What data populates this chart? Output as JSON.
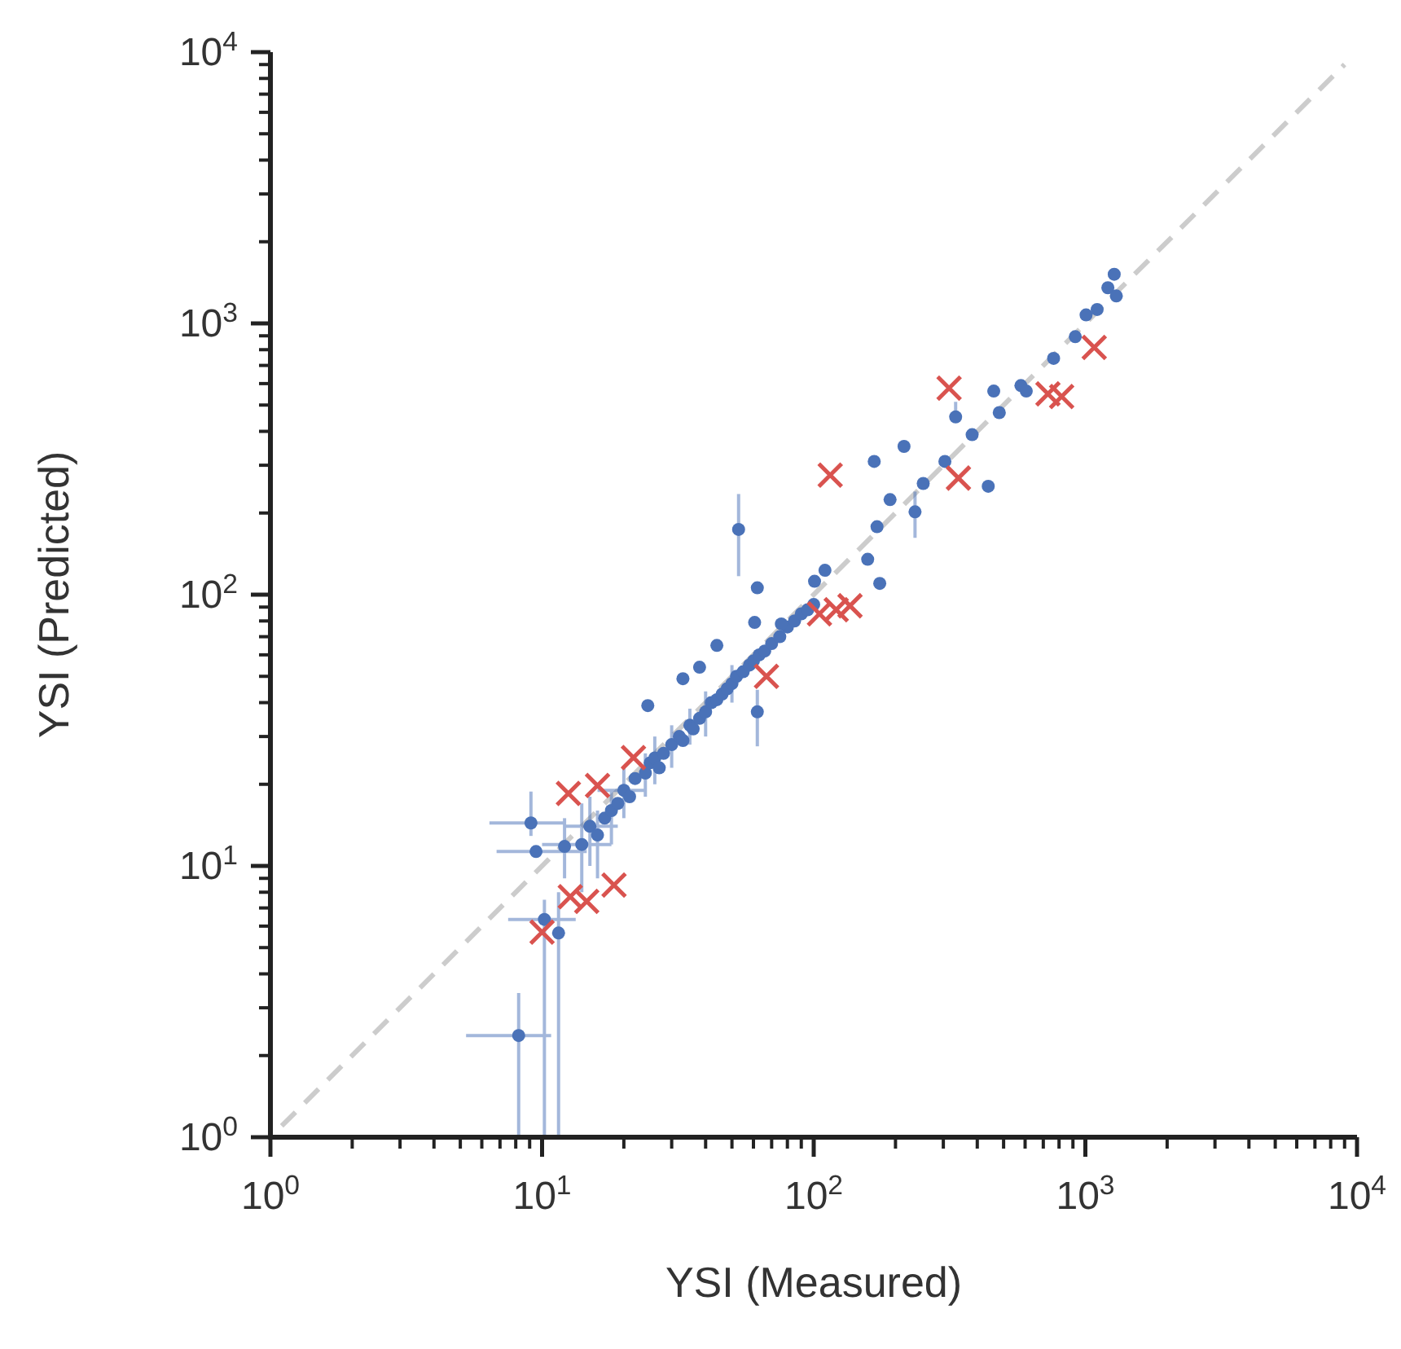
{
  "chart_data": {
    "type": "scatter",
    "xlabel": "YSI (Measured)",
    "ylabel": "YSI (Predicted)",
    "log": "xy",
    "grid": false,
    "xlim": [
      1,
      10000
    ],
    "ylim": [
      1,
      10000
    ],
    "xticks": [
      {
        "value": 1,
        "label": "10$^{0}$"
      },
      {
        "value": 2,
        "label": null
      },
      {
        "value": 3,
        "label": null
      },
      {
        "value": 4,
        "label": null
      },
      {
        "value": 5,
        "label": null
      },
      {
        "value": 6,
        "label": null
      },
      {
        "value": 7,
        "label": null
      },
      {
        "value": 8,
        "label": null
      },
      {
        "value": 9,
        "label": null
      },
      {
        "value": 10,
        "label": "10$^{1}$"
      },
      {
        "value": 20,
        "label": null
      },
      {
        "value": 30,
        "label": null
      },
      {
        "value": 40,
        "label": null
      },
      {
        "value": 50,
        "label": null
      },
      {
        "value": 60,
        "label": null
      },
      {
        "value": 70,
        "label": null
      },
      {
        "value": 80,
        "label": null
      },
      {
        "value": 90,
        "label": null
      },
      {
        "value": 100,
        "label": "10$^{2}$"
      },
      {
        "value": 200,
        "label": null
      },
      {
        "value": 300,
        "label": null
      },
      {
        "value": 400,
        "label": null
      },
      {
        "value": 500,
        "label": null
      },
      {
        "value": 600,
        "label": null
      },
      {
        "value": 700,
        "label": null
      },
      {
        "value": 800,
        "label": null
      },
      {
        "value": 900,
        "label": null
      },
      {
        "value": 1000,
        "label": "10$^{3}$"
      },
      {
        "value": 2000,
        "label": null
      },
      {
        "value": 3000,
        "label": null
      },
      {
        "value": 4000,
        "label": null
      },
      {
        "value": 5000,
        "label": null
      },
      {
        "value": 6000,
        "label": null
      },
      {
        "value": 7000,
        "label": null
      },
      {
        "value": 8000,
        "label": null
      },
      {
        "value": 9000,
        "label": null
      },
      {
        "value": 10000,
        "label": "10$^{4}$"
      }
    ],
    "yticks": [
      {
        "value": 1,
        "label": "10$^{0}$"
      },
      {
        "value": 2,
        "label": null
      },
      {
        "value": 3,
        "label": null
      },
      {
        "value": 4,
        "label": null
      },
      {
        "value": 5,
        "label": null
      },
      {
        "value": 6,
        "label": null
      },
      {
        "value": 7,
        "label": null
      },
      {
        "value": 8,
        "label": null
      },
      {
        "value": 9,
        "label": null
      },
      {
        "value": 10,
        "label": "10$^{1}$"
      },
      {
        "value": 20,
        "label": null
      },
      {
        "value": 30,
        "label": null
      },
      {
        "value": 40,
        "label": null
      },
      {
        "value": 50,
        "label": null
      },
      {
        "value": 60,
        "label": null
      },
      {
        "value": 70,
        "label": null
      },
      {
        "value": 80,
        "label": null
      },
      {
        "value": 90,
        "label": null
      },
      {
        "value": 100,
        "label": "10$^{2}$"
      },
      {
        "value": 200,
        "label": null
      },
      {
        "value": 300,
        "label": null
      },
      {
        "value": 400,
        "label": null
      },
      {
        "value": 500,
        "label": null
      },
      {
        "value": 600,
        "label": null
      },
      {
        "value": 700,
        "label": null
      },
      {
        "value": 800,
        "label": null
      },
      {
        "value": 900,
        "label": null
      },
      {
        "value": 1000,
        "label": "10$^{3}$"
      },
      {
        "value": 2000,
        "label": null
      },
      {
        "value": 3000,
        "label": null
      },
      {
        "value": 4000,
        "label": null
      },
      {
        "value": 5000,
        "label": null
      },
      {
        "value": 6000,
        "label": null
      },
      {
        "value": 7000,
        "label": null
      },
      {
        "value": 8000,
        "label": null
      },
      {
        "value": 9000,
        "label": null
      },
      {
        "value": 10000,
        "label": "10$^{4}$"
      }
    ],
    "series": [
      {
        "type": "line",
        "color": "#cccccc",
        "line_style": "dashed",
        "marker": "none",
        "x": [
          1.1,
          9000
        ],
        "values": [
          1.1,
          9000
        ]
      },
      {
        "color": "#4a72b8",
        "marker": "circle",
        "x": [
          8.2,
          9.1,
          9.5,
          10.2,
          11.5,
          12.1,
          14,
          15,
          16,
          17,
          18,
          19,
          20,
          21,
          22,
          24,
          24.5,
          25,
          26,
          27,
          28,
          30,
          32,
          33,
          35,
          36,
          38,
          40,
          42,
          44,
          46,
          48,
          50,
          52,
          55,
          58,
          60,
          63,
          66,
          70,
          75,
          80,
          85,
          90,
          95,
          100,
          33,
          38,
          44,
          52.9,
          62,
          60.6,
          62,
          76,
          100.7,
          110,
          158,
          175,
          171,
          167,
          215,
          236,
          191,
          253,
          304,
          333,
          383,
          439,
          482,
          460,
          579,
          606,
          764,
          918,
          1006,
          1105,
          1210,
          1277,
          1300
        ],
        "values": [
          2.37,
          14.4,
          11.3,
          6.35,
          5.66,
          11.8,
          12,
          14,
          13,
          15,
          16,
          17,
          19,
          18,
          21,
          22,
          39,
          24,
          25,
          23,
          26,
          28,
          30,
          29,
          33,
          32,
          35,
          37,
          40,
          41,
          43,
          45,
          47,
          50,
          52,
          55,
          57,
          60,
          62,
          66,
          70,
          76,
          80,
          85,
          88,
          92,
          49,
          54,
          65,
          174,
          106,
          79,
          37,
          78,
          112,
          123,
          135,
          110,
          178,
          310,
          352,
          202,
          224,
          257,
          310,
          452,
          389,
          251,
          469,
          563,
          590,
          563,
          743,
          893,
          1075,
          1125,
          1353,
          1518,
          1262
        ],
        "errors": [
          [
            1,
            3.4
          ],
          [
            12.9,
            18.8
          ],
          null,
          [
            1,
            7.5
          ],
          [
            1,
            8
          ],
          [
            9,
            15
          ],
          [
            8,
            17
          ],
          [
            10,
            18
          ],
          [
            9,
            16
          ],
          null,
          [
            12,
            19
          ],
          null,
          [
            15,
            23
          ],
          null,
          null,
          [
            18,
            26
          ],
          null,
          null,
          [
            20,
            30
          ],
          null,
          null,
          [
            23,
            33
          ],
          null,
          null,
          [
            28,
            38
          ],
          null,
          null,
          [
            30,
            44
          ],
          null,
          null,
          null,
          null,
          [
            40,
            55
          ],
          null,
          null,
          null,
          null,
          null,
          null,
          null,
          null,
          null,
          null,
          null,
          null,
          null,
          null,
          null,
          null,
          [
            117,
            235
          ],
          null,
          null,
          [
            27.6,
            44.6
          ],
          null,
          null,
          null,
          null,
          null,
          null,
          null,
          null,
          [
            162,
            240
          ],
          null,
          null,
          null,
          [
            440,
            514
          ],
          null,
          null,
          null,
          null,
          null,
          null,
          null,
          null,
          null,
          null,
          null,
          null,
          null
        ],
        "xerrors": [
          [
            5.25,
            10.8
          ],
          [
            6.4,
            12.1
          ],
          [
            6.8,
            14.6
          ],
          [
            7.5,
            13.3
          ],
          null,
          null,
          [
            10,
            18
          ],
          [
            12,
            19
          ],
          null,
          null,
          null,
          null,
          [
            16,
            24
          ],
          null,
          null,
          null,
          null,
          null,
          null,
          null,
          null,
          null,
          null,
          null,
          null,
          null,
          null,
          null,
          null,
          null,
          null,
          null,
          null,
          null,
          null,
          null,
          null,
          null,
          null,
          null,
          null,
          null,
          null,
          null,
          null,
          null,
          null,
          null,
          null,
          null,
          null,
          null,
          null,
          null,
          null,
          null,
          null,
          null,
          null,
          null,
          null,
          null,
          null,
          null,
          null,
          null,
          null,
          null,
          null,
          null,
          null,
          null,
          null,
          null,
          null,
          null,
          null,
          null,
          null
        ]
      },
      {
        "color": "#d9534f",
        "marker": "cross",
        "x": [
          12.5,
          16.0,
          21.7,
          18.4,
          12.7,
          14.6,
          10.0,
          67,
          105,
          121,
          136,
          115,
          315,
          341,
          728,
          818,
          1078
        ],
        "values": [
          18.5,
          19.8,
          25.1,
          8.5,
          7.7,
          7.4,
          5.7,
          50,
          85,
          88,
          91,
          276,
          577,
          269,
          550,
          538,
          815
        ]
      }
    ]
  }
}
